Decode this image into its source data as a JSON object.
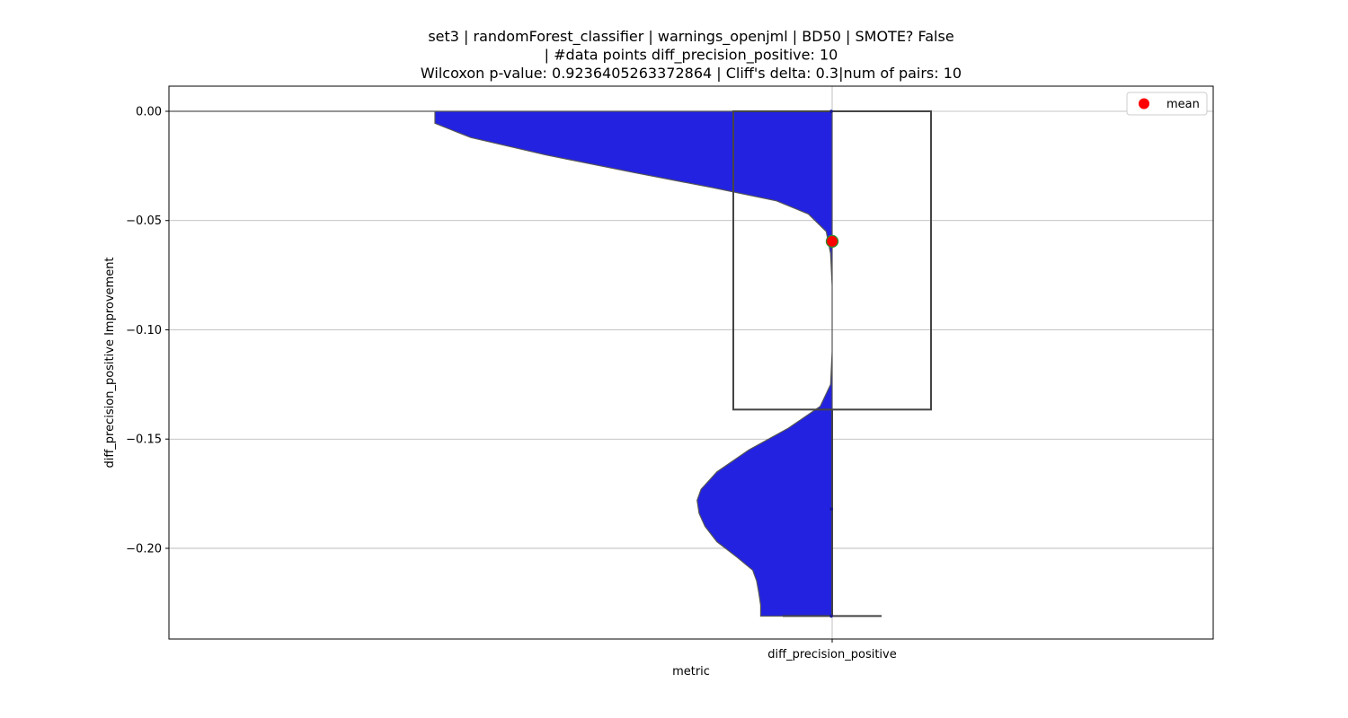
{
  "chart_data": {
    "type": "violin+box",
    "title_lines": [
      "set3 | randomForest_classifier | warnings_openjml | BD50 | SMOTE? False",
      "| #data points diff_precision_positive: 10",
      "Wilcoxon p-value: 0.9236405263372864 | Cliff's delta: 0.3|num of pairs: 10"
    ],
    "xlabel": "metric",
    "ylabel": "diff_precision_positive Improvement",
    "categories": [
      "diff_precision_positive"
    ],
    "ylim": [
      -0.2415,
      0.0115
    ],
    "yticks": [
      0.0,
      -0.05,
      -0.1,
      -0.15,
      -0.2
    ],
    "ytick_labels": [
      "0.00",
      "−0.05",
      "−0.10",
      "−0.15",
      "−0.20"
    ],
    "grid": true,
    "legend": {
      "position": "top-right",
      "entries": [
        {
          "label": "mean",
          "color": "#ff0000"
        }
      ]
    },
    "colors": {
      "violin_fill": "#2222e0",
      "violin_edge": "#555555",
      "box_edge": "#444444",
      "mean_marker": "#ff0000",
      "mean_edge": "#2e8b2e",
      "point": "#1a1a8c",
      "grid": "#b0b0b0"
    },
    "violin_profile": [
      {
        "y": 0.0,
        "half_width": 1.0
      },
      {
        "y": -0.0055,
        "half_width": 1.0
      },
      {
        "y": -0.012,
        "half_width": 0.91
      },
      {
        "y": -0.02,
        "half_width": 0.72
      },
      {
        "y": -0.028,
        "half_width": 0.5
      },
      {
        "y": -0.035,
        "half_width": 0.3
      },
      {
        "y": -0.041,
        "half_width": 0.14
      },
      {
        "y": -0.047,
        "half_width": 0.06
      },
      {
        "y": -0.055,
        "half_width": 0.015
      },
      {
        "y": -0.065,
        "half_width": 0.004
      },
      {
        "y": -0.08,
        "half_width": 0.0
      },
      {
        "y": -0.11,
        "half_width": 0.0
      },
      {
        "y": -0.125,
        "half_width": 0.004
      },
      {
        "y": -0.135,
        "half_width": 0.03
      },
      {
        "y": -0.145,
        "half_width": 0.11
      },
      {
        "y": -0.155,
        "half_width": 0.21
      },
      {
        "y": -0.165,
        "half_width": 0.29
      },
      {
        "y": -0.173,
        "half_width": 0.33
      },
      {
        "y": -0.178,
        "half_width": 0.34
      },
      {
        "y": -0.184,
        "half_width": 0.335
      },
      {
        "y": -0.19,
        "half_width": 0.32
      },
      {
        "y": -0.197,
        "half_width": 0.29
      },
      {
        "y": -0.204,
        "half_width": 0.24
      },
      {
        "y": -0.21,
        "half_width": 0.2
      },
      {
        "y": -0.215,
        "half_width": 0.19
      },
      {
        "y": -0.22,
        "half_width": 0.185
      },
      {
        "y": -0.226,
        "half_width": 0.18
      },
      {
        "y": -0.231,
        "half_width": 0.18
      }
    ],
    "box": {
      "q1": -0.1365,
      "median": 0.0,
      "q3": 0.0,
      "whisker_low": -0.231,
      "whisker_high": 0.0
    },
    "mean": -0.0595,
    "points": [
      0.0,
      -0.182,
      -0.231
    ]
  }
}
